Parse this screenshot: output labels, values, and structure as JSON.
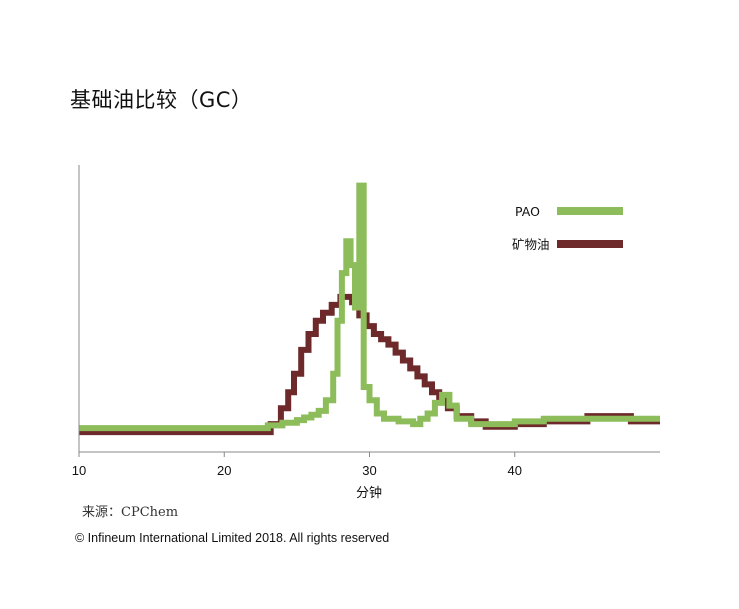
{
  "title": "基础油比较（GC）",
  "source": "来源：CPChem",
  "copyright": "© Infineum International Limited 2018. All rights reserved",
  "colors": {
    "pao": "#8cbd5a",
    "mineral": "#6e2a2a",
    "axis": "#888888"
  },
  "chart_data": {
    "type": "line",
    "step": true,
    "title": "基础油比较（GC）",
    "xlabel": "分钟",
    "ylabel": "",
    "xlim": [
      10,
      50
    ],
    "ylim": [
      0,
      100
    ],
    "xticks": [
      10,
      20,
      30,
      40
    ],
    "xtick_labels": [
      "10",
      "20",
      "30",
      "40"
    ],
    "grid": false,
    "legend_position": "top-right",
    "series": [
      {
        "name": "PAO",
        "color": "#8cbd5a",
        "x": [
          10,
          22,
          23,
          24,
          25,
          25.5,
          26,
          26.5,
          27,
          27.5,
          27.8,
          28.1,
          28.4,
          28.7,
          29.0,
          29.3,
          29.6,
          30.0,
          30.5,
          31,
          32,
          33,
          33.5,
          34,
          34.5,
          35,
          35.5,
          36,
          37,
          38,
          40,
          42,
          45,
          50
        ],
        "y": [
          4.5,
          4.5,
          5.5,
          6.5,
          7.5,
          8.5,
          9.5,
          11,
          15,
          25,
          45,
          63,
          75,
          66,
          50,
          96,
          20,
          15,
          10,
          8,
          7,
          6,
          8,
          10,
          14,
          17,
          13,
          8,
          6,
          6,
          7,
          8,
          8,
          8
        ]
      },
      {
        "name": "矿物油",
        "color": "#6e2a2a",
        "x": [
          10,
          22.5,
          23.2,
          23.9,
          24.4,
          24.8,
          25.3,
          25.8,
          26.3,
          26.8,
          27.4,
          28,
          28.8,
          29.3,
          29.8,
          30.3,
          30.8,
          31.3,
          31.8,
          32.3,
          32.8,
          33.3,
          33.8,
          34.3,
          34.8,
          35.4,
          36,
          37,
          38,
          40,
          42,
          45,
          48,
          50
        ],
        "y": [
          3,
          3,
          6,
          12,
          18,
          25,
          34,
          40,
          45,
          48,
          51,
          54,
          52,
          47,
          43,
          40,
          38,
          36,
          33,
          30,
          27,
          24,
          21,
          18,
          15,
          12,
          9,
          7,
          5,
          6,
          7,
          9,
          7,
          7
        ]
      }
    ]
  }
}
